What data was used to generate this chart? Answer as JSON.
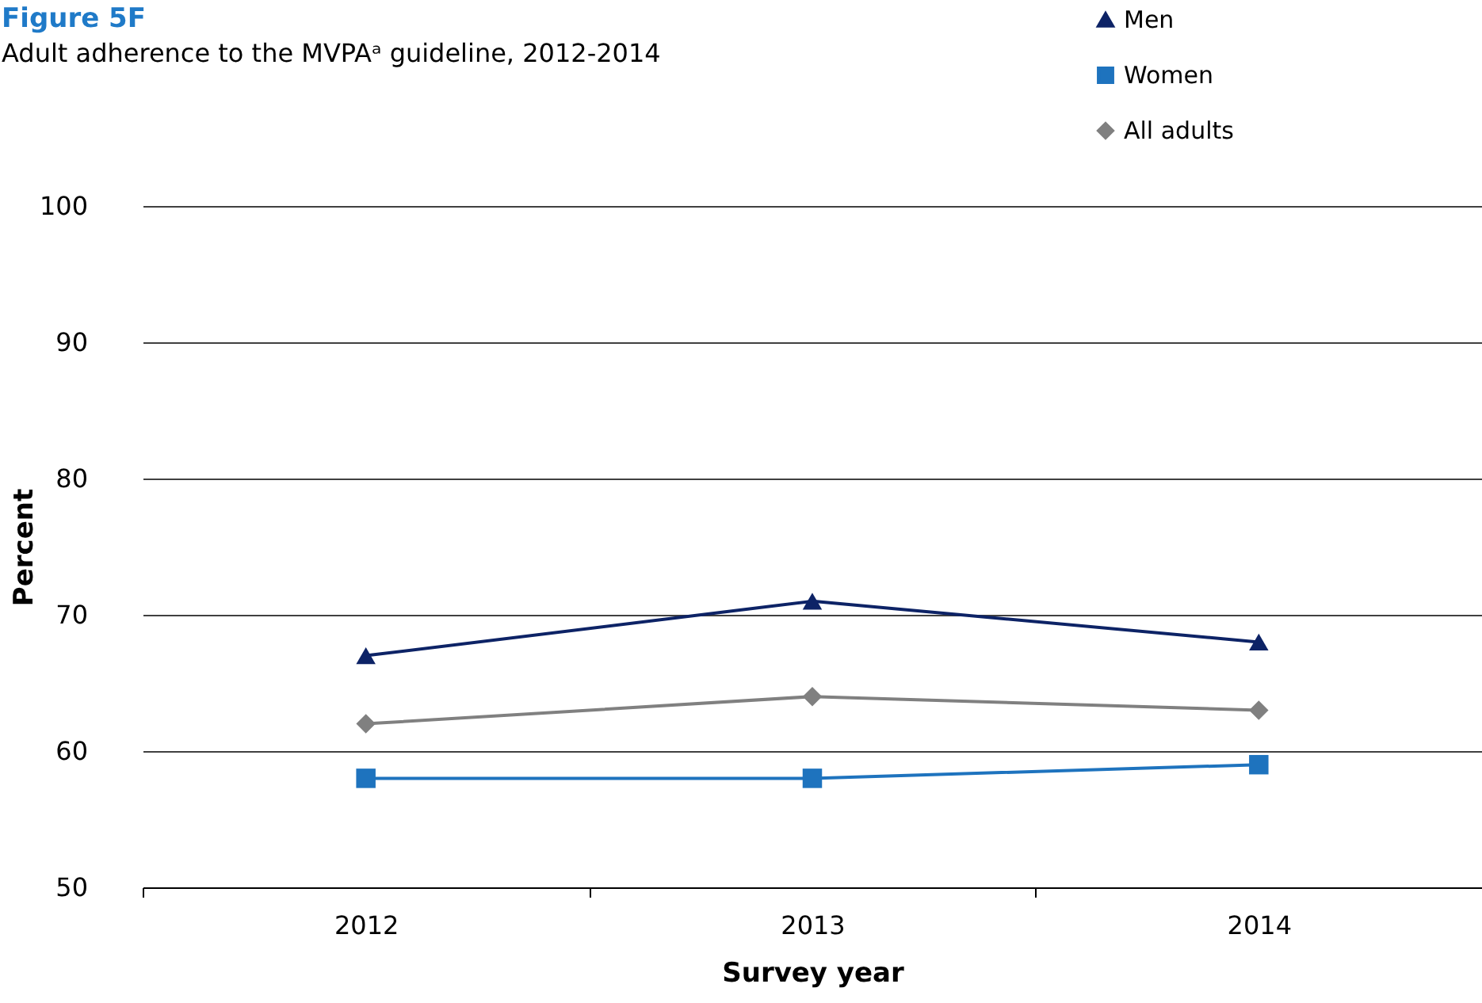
{
  "chart_data": {
    "type": "line",
    "title": "Figure 5F",
    "subtitle": "Adult adherence to the MVPAᵃ guideline, 2012-2014",
    "xlabel": "Survey year",
    "ylabel": "Percent",
    "categories": [
      "2012",
      "2013",
      "2014"
    ],
    "series": [
      {
        "name": "Men",
        "color": "#0d2366",
        "marker": "triangle",
        "values": [
          67,
          71,
          68
        ]
      },
      {
        "name": "Women",
        "color": "#1e73be",
        "marker": "square",
        "values": [
          58,
          58,
          59
        ]
      },
      {
        "name": "All adults",
        "color": "#808080",
        "marker": "diamond",
        "values": [
          62,
          64,
          63
        ]
      }
    ],
    "ylim": [
      50,
      100
    ],
    "yticks": [
      50,
      60,
      70,
      80,
      90,
      100
    ],
    "grid": "y",
    "legend": "top right",
    "line_style": "solid"
  }
}
